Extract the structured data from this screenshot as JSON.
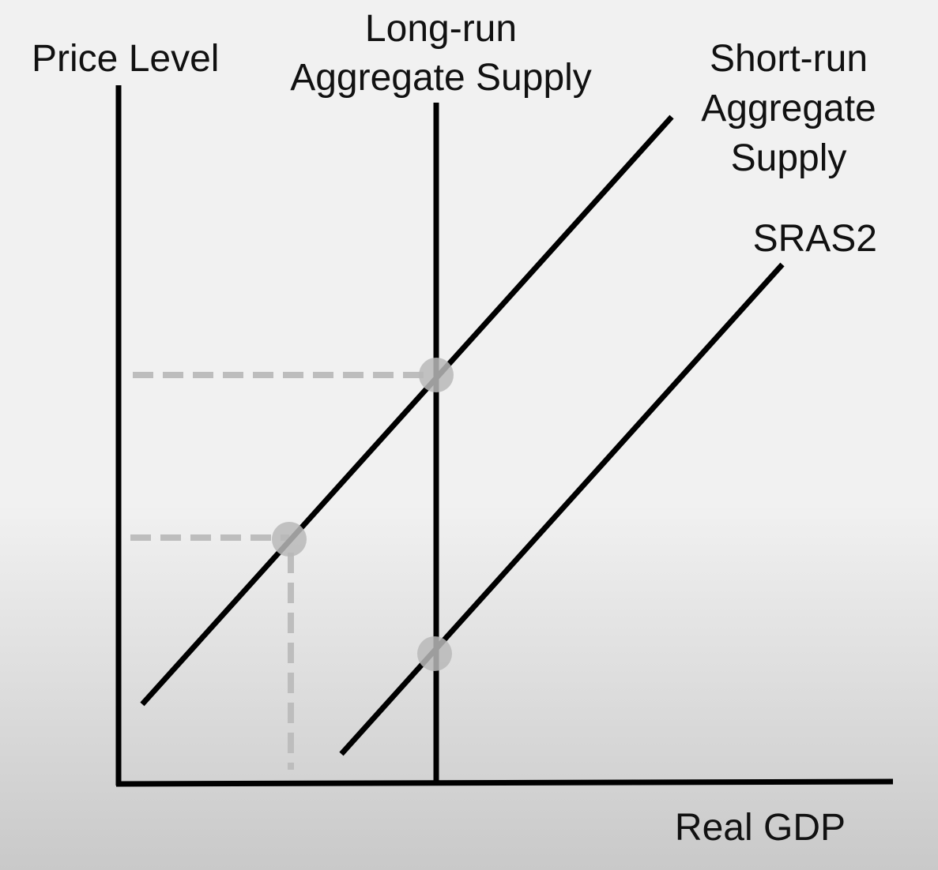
{
  "labels": {
    "y_axis": "Price Level",
    "x_axis": "Real GDP",
    "lras_line1": "Long-run",
    "lras_line2": "Aggregate Supply",
    "sras_line1": "Short-run",
    "sras_line2": "Aggregate",
    "sras_line3": "Supply",
    "sras2": "SRAS2"
  },
  "colors": {
    "background": "#f1f1f1",
    "curve": "#000000",
    "guide": "#bdbdbd",
    "point": "#b8b8b8"
  }
}
